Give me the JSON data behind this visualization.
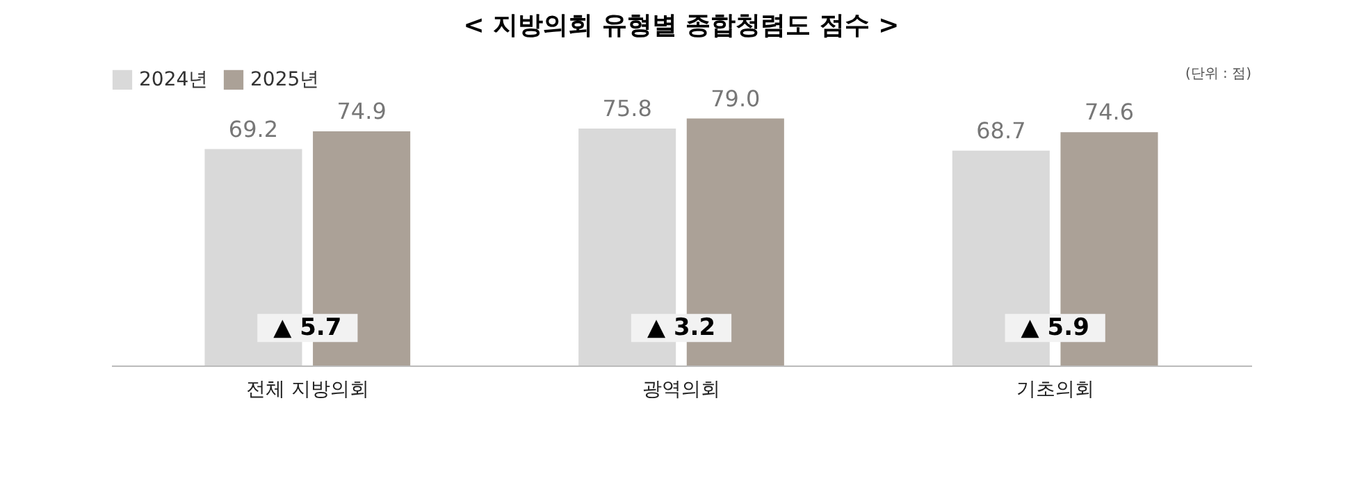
{
  "chart_data": {
    "type": "bar",
    "title": "< 지방의회 유형별 종합청렴도 점수 >",
    "categories": [
      "전체 지방의회",
      "광역의회",
      "기초의회"
    ],
    "series": [
      {
        "name": "2024년",
        "color": "#d9d9d9",
        "values": [
          69.2,
          75.8,
          68.7
        ],
        "value_labels": [
          "69.2",
          "75.8",
          "68.7"
        ]
      },
      {
        "name": "2025년",
        "color": "#aba197",
        "values": [
          74.9,
          79.0,
          74.6
        ],
        "value_labels": [
          "74.9",
          "79.0",
          "74.6"
        ]
      }
    ],
    "legend": "top",
    "grid": false,
    "annotations": [
      "(단위 : 점)",
      {
        "text": "▲ 5.7",
        "x": "전체 지방의회",
        "y": 12
      },
      {
        "text": "▲ 3.2",
        "x": "광역의회",
        "y": 12
      },
      {
        "text": "▲ 5.9",
        "x": "기초의회",
        "y": 12
      }
    ]
  }
}
